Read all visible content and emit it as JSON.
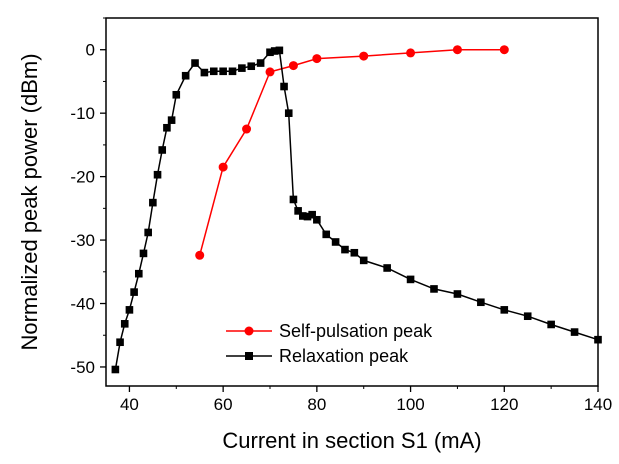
{
  "chart_data": {
    "type": "line",
    "xlabel": "Current in section S1 (mA)",
    "ylabel": "Normalized peak power (dBm)",
    "xlim": [
      35,
      140
    ],
    "ylim": [
      -53,
      5
    ],
    "xticks": [
      40,
      60,
      80,
      100,
      120,
      140
    ],
    "yticks": [
      0,
      -10,
      -20,
      -30,
      -40,
      -50
    ],
    "xtick_labels": [
      "40",
      "60",
      "80",
      "100",
      "120",
      "140"
    ],
    "ytick_labels": [
      "0",
      "-10",
      "-20",
      "-30",
      "-40",
      "-50"
    ],
    "grid": false,
    "legend_position": "bottom-center",
    "series": [
      {
        "name": "Self-pulsation peak",
        "color": "#ff0000",
        "marker": "circle",
        "x": [
          55,
          60,
          65,
          70,
          75,
          80,
          90,
          100,
          110,
          120
        ],
        "y": [
          -32.4,
          -18.5,
          -12.5,
          -3.5,
          -2.5,
          -1.4,
          -1.0,
          -0.5,
          0.0,
          0.0
        ]
      },
      {
        "name": "Relaxation peak",
        "color": "#000000",
        "marker": "square",
        "x": [
          37,
          38,
          39,
          40,
          41,
          42,
          43,
          44,
          45,
          46,
          47,
          48,
          49,
          50,
          52,
          54,
          56,
          58,
          60,
          62,
          64,
          66,
          68,
          70,
          71,
          72,
          73,
          74,
          75,
          76,
          77,
          78,
          79,
          80,
          82,
          84,
          86,
          88,
          90,
          95,
          100,
          105,
          110,
          115,
          120,
          125,
          130,
          135,
          140
        ],
        "y": [
          -50.4,
          -46.1,
          -43.2,
          -41.0,
          -38.2,
          -35.3,
          -32.1,
          -28.8,
          -24.1,
          -19.7,
          -15.8,
          -12.3,
          -11.1,
          -7.1,
          -4.1,
          -2.1,
          -3.6,
          -3.4,
          -3.4,
          -3.4,
          -2.9,
          -2.6,
          -2.1,
          -0.4,
          -0.2,
          -0.1,
          -5.8,
          -10.0,
          -23.6,
          -25.4,
          -26.2,
          -26.3,
          -26.0,
          -26.8,
          -29.1,
          -30.3,
          -31.5,
          -32.0,
          -33.2,
          -34.4,
          -36.2,
          -37.7,
          -38.5,
          -39.8,
          -41.0,
          -42.0,
          -43.3,
          -44.5,
          -45.7
        ]
      }
    ]
  }
}
